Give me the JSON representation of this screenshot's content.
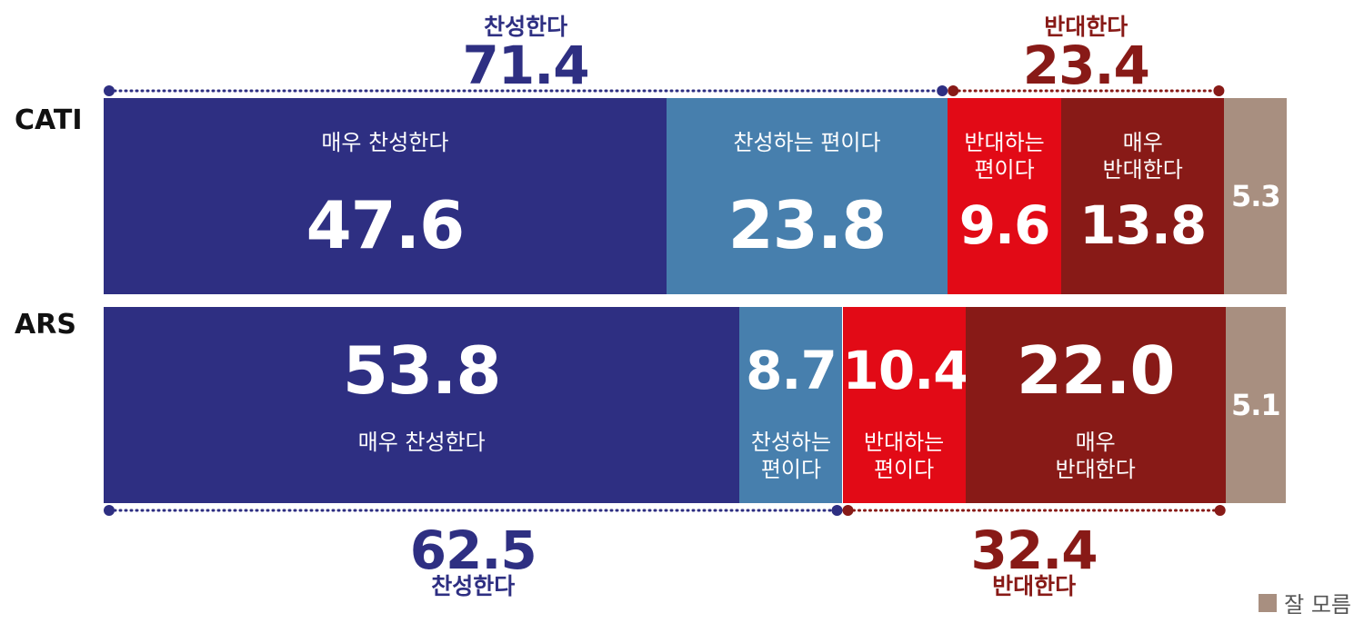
{
  "colors": {
    "strongly_agree": "#2e2f82",
    "somewhat_agree": "#477fad",
    "somewhat_disagree": "#e20a16",
    "strongly_disagree": "#881a17",
    "dont_know": "#a88f80",
    "agree_text": "#2e2f82",
    "disagree_text": "#881a17"
  },
  "chart_data": {
    "type": "bar",
    "orientation": "horizontal",
    "stacked": true,
    "categories": [
      "CATI",
      "ARS"
    ],
    "series": [
      {
        "key": "strongly_agree",
        "label": "매우 찬성한다",
        "values": [
          47.6,
          53.8
        ]
      },
      {
        "key": "somewhat_agree",
        "label": "찬성하는 편이다",
        "values": [
          23.8,
          8.7
        ]
      },
      {
        "key": "somewhat_disagree",
        "label": "반대하는 편이다",
        "values": [
          9.6,
          10.4
        ]
      },
      {
        "key": "strongly_disagree",
        "label": "매우 반대한다",
        "values": [
          13.8,
          22.0
        ]
      },
      {
        "key": "dont_know",
        "label": "잘 모름",
        "values": [
          5.3,
          5.1
        ]
      }
    ],
    "segment_labels": {
      "CATI": [
        "매우 찬성한다",
        "찬성하는 편이다",
        "반대하는\n편이다",
        "매우\n반대한다",
        ""
      ],
      "ARS": [
        "매우 찬성한다",
        "찬성하는\n편이다",
        "반대하는\n편이다",
        "매우\n반대한다",
        ""
      ]
    },
    "totals": {
      "CATI": {
        "agree": {
          "label": "찬성한다",
          "value": "71.4"
        },
        "disagree": {
          "label": "반대한다",
          "value": "23.4"
        }
      },
      "ARS": {
        "agree": {
          "label": "찬성한다",
          "value": "62.5"
        },
        "disagree": {
          "label": "반대한다",
          "value": "32.4"
        }
      }
    },
    "legend": [
      {
        "label": "잘 모름",
        "color_key": "dont_know"
      }
    ],
    "legend_position": "bottom-right",
    "xlim": [
      0,
      100
    ]
  }
}
